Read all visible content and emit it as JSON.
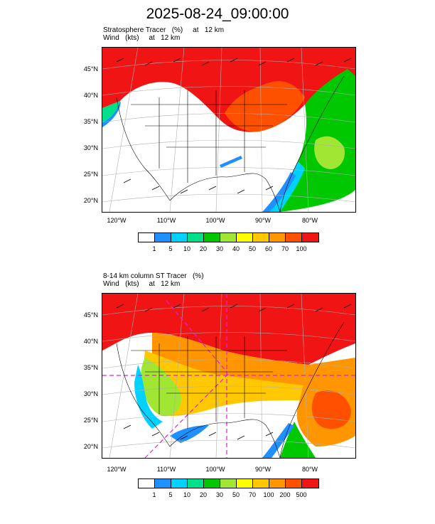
{
  "header": {
    "title": "2025-08-24_09:00:00"
  },
  "panels": [
    {
      "line1": "Stratosphere Tracer   (%)     at   12 km",
      "line2": "Wind   (kts)     at   12 km",
      "lat_labels": [
        "45°N",
        "40°N",
        "35°N",
        "30°N",
        "25°N",
        "20°N"
      ],
      "lon_labels": [
        "120°W",
        "110°W",
        "100°W",
        "90°W",
        "80°W"
      ],
      "colorbar": {
        "colors": [
          "#ffffff",
          "#1e90ff",
          "#00d2ff",
          "#00e08a",
          "#00c800",
          "#a0e632",
          "#ffff00",
          "#ffc800",
          "#ff9600",
          "#ff5000",
          "#f01414"
        ],
        "labels": [
          "1",
          "5",
          "10",
          "20",
          "30",
          "40",
          "50",
          "60",
          "70",
          "100"
        ]
      }
    },
    {
      "line1": "8-14 km column ST Tracer   (%)",
      "line2": "Wind   (kts)     at   12 km",
      "lat_labels": [
        "45°N",
        "40°N",
        "35°N",
        "30°N",
        "25°N",
        "20°N"
      ],
      "lon_labels": [
        "120°W",
        "110°W",
        "100°W",
        "90°W",
        "80°W"
      ],
      "colorbar": {
        "colors": [
          "#ffffff",
          "#1e90ff",
          "#00d2ff",
          "#00e08a",
          "#00c800",
          "#a0e632",
          "#ffff00",
          "#ffc800",
          "#ff9600",
          "#ff5000",
          "#f01414"
        ],
        "labels": [
          "1",
          "5",
          "10",
          "20",
          "30",
          "50",
          "70",
          "100",
          "200",
          "500"
        ]
      }
    }
  ]
}
